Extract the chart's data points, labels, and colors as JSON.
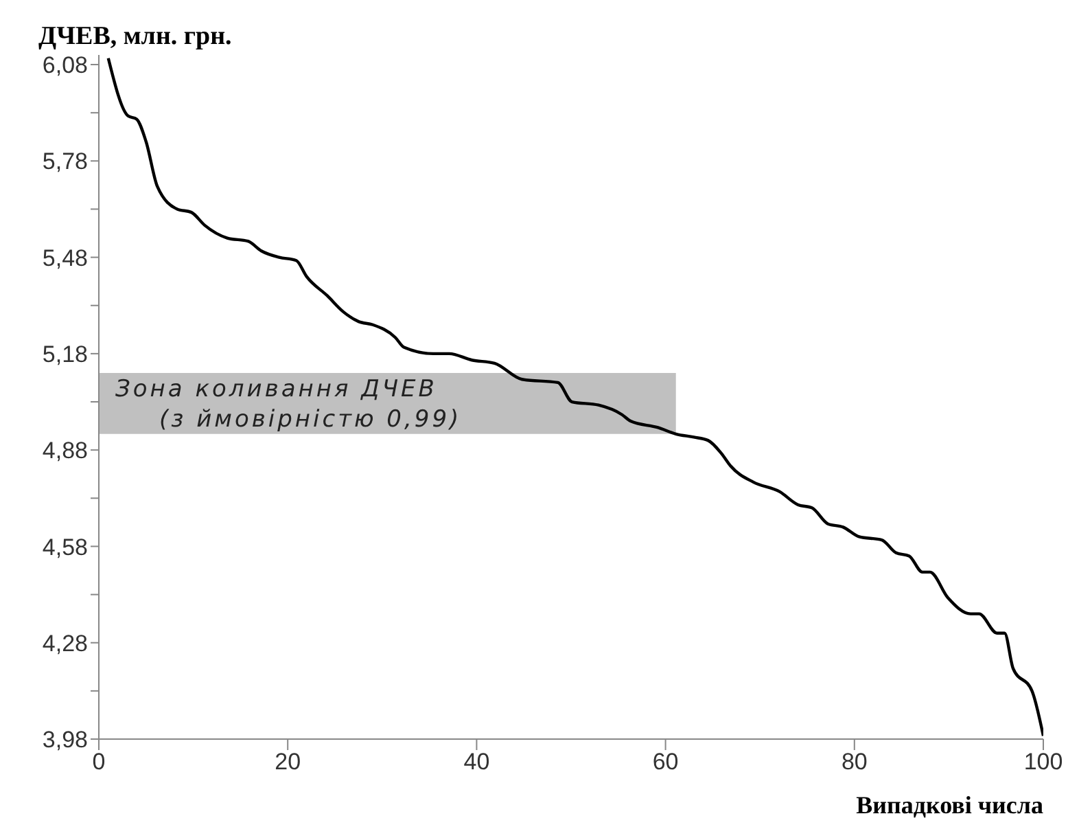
{
  "chart_data": {
    "type": "line",
    "ylabel": "ДЧЕВ, млн. грн.",
    "xlabel": "Випадкові числа",
    "x": [
      1,
      3.1,
      4,
      5,
      6.2,
      8.3,
      9.8,
      11.2,
      13.6,
      15.8,
      17.2,
      19.1,
      20.9,
      22,
      24.2,
      25.9,
      27.5,
      29,
      31.4,
      32.3,
      35.4,
      37.1,
      39.5,
      41.9,
      44.8,
      48.6,
      50.1,
      52.9,
      55.4,
      56.3,
      59.2,
      61.1,
      63,
      64.5,
      65.9,
      66.9,
      69.3,
      72.1,
      74,
      75.5,
      77.2,
      78.8,
      80.5,
      82.9,
      84.4,
      85.8,
      87.2,
      88,
      89.9,
      92.3,
      93.2,
      95.1,
      95.9,
      96.8,
      98.8,
      100
    ],
    "series": [
      {
        "color": "#000000",
        "values": [
          6.1,
          5.92,
          5.91,
          5.84,
          5.7,
          5.63,
          5.62,
          5.58,
          5.54,
          5.53,
          5.5,
          5.48,
          5.47,
          5.42,
          5.36,
          5.31,
          5.28,
          5.27,
          5.23,
          5.2,
          5.18,
          5.18,
          5.16,
          5.15,
          5.1,
          5.09,
          5.03,
          5.02,
          4.99,
          4.97,
          4.95,
          4.93,
          4.92,
          4.91,
          4.87,
          4.83,
          4.78,
          4.75,
          4.71,
          4.7,
          4.65,
          4.64,
          4.61,
          4.6,
          4.56,
          4.55,
          4.5,
          4.5,
          4.42,
          4.37,
          4.37,
          4.31,
          4.31,
          4.2,
          4.13,
          3.99
        ]
      }
    ],
    "xlim": [
      0,
      100
    ],
    "xticks": [
      0,
      20,
      40,
      60,
      80,
      100
    ],
    "ylim": [
      3.98,
      6.11
    ],
    "yticks": [
      {
        "value": 3.98,
        "label": "3,98"
      },
      {
        "value": 4.13,
        "label": null
      },
      {
        "value": 4.28,
        "label": "4,28"
      },
      {
        "value": 4.43,
        "label": null
      },
      {
        "value": 4.58,
        "label": "4,58"
      },
      {
        "value": 4.73,
        "label": null
      },
      {
        "value": 4.88,
        "label": "4,88"
      },
      {
        "value": 5.03,
        "label": null
      },
      {
        "value": 5.18,
        "label": "5,18"
      },
      {
        "value": 5.33,
        "label": null
      },
      {
        "value": 5.48,
        "label": "5,48"
      },
      {
        "value": 5.63,
        "label": null
      },
      {
        "value": 5.78,
        "label": "5,78"
      },
      {
        "value": 5.93,
        "label": null
      },
      {
        "value": 6.08,
        "label": "6,08"
      }
    ],
    "bands": [
      {
        "axis": "y",
        "from": 4.93,
        "to": 5.12,
        "label": "Зона коливання ДЧЕВ\n(з ймовірністю 0,99)",
        "color": "#c0c0c0"
      }
    ],
    "grid": false,
    "legend": false,
    "marker": "none",
    "line_style": "solid"
  }
}
